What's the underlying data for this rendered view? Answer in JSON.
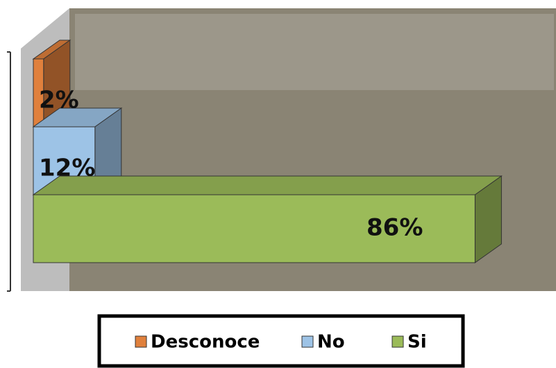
{
  "chart_data": {
    "type": "bar3d",
    "series": [
      {
        "name": "Desconoce",
        "color": "#e0803c",
        "values": [
          2
        ],
        "value_labels": [
          "2%"
        ]
      },
      {
        "name": "No",
        "color": "#9dc3e6",
        "values": [
          12
        ],
        "value_labels": [
          "12%"
        ]
      },
      {
        "name": "Si",
        "color": "#9bbb59",
        "values": [
          86
        ],
        "value_labels": [
          "86%"
        ]
      }
    ],
    "xlim": [
      0,
      100
    ]
  }
}
